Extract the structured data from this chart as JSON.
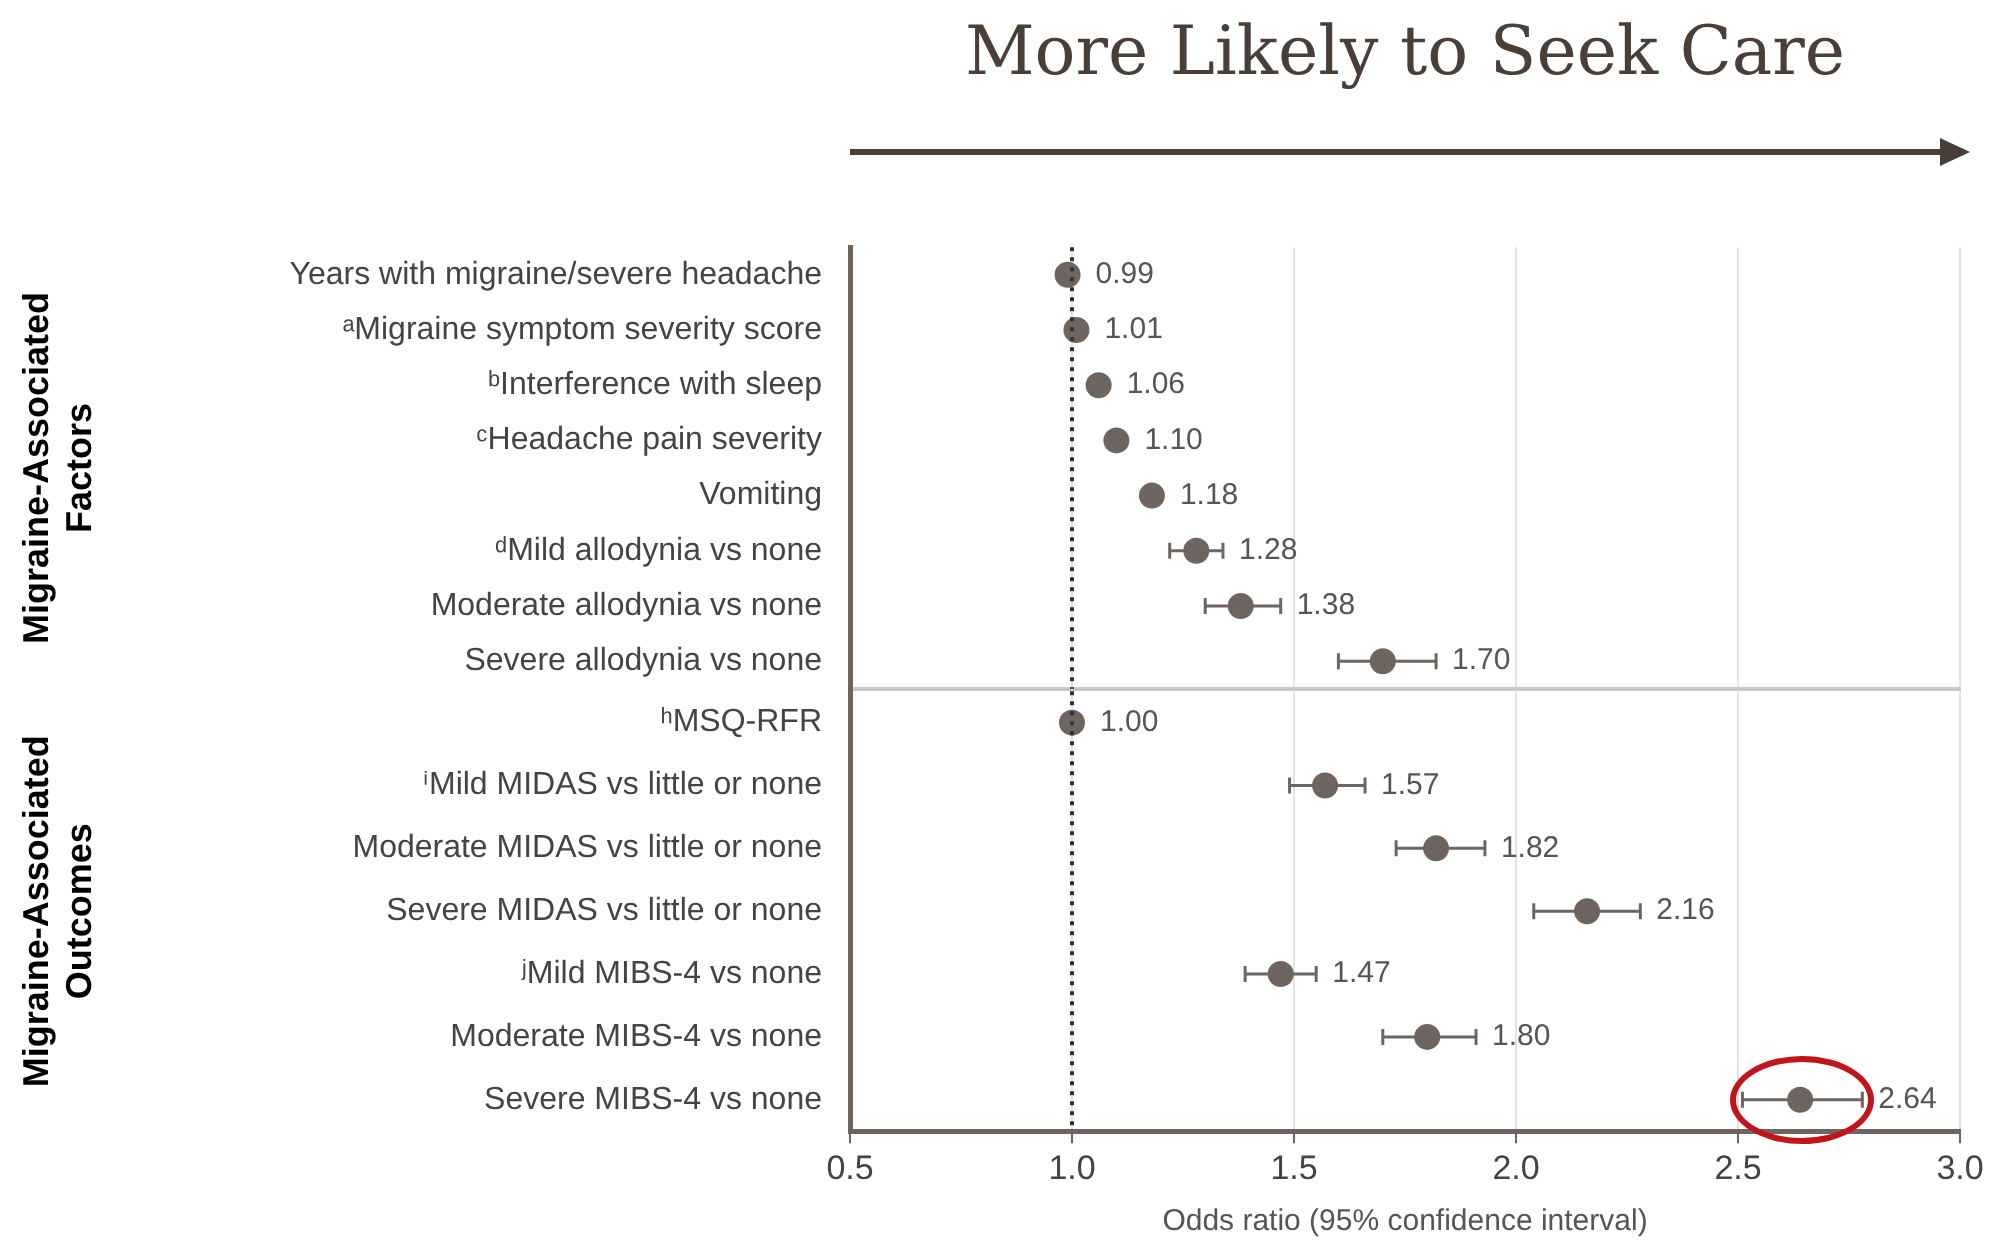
{
  "chart_data": [
    {
      "type": "scatter",
      "orientation": "horizontal",
      "title": "More Likely to Seek Care",
      "ylabel": "Migraine-Associated Factors",
      "categories": [
        "Years with migraine/severe headache",
        "ᵃMigraine symptom severity score",
        "ᵇInterference with sleep",
        "ᶜHeadache pain severity",
        "Vomiting",
        "ᵈMild allodynia vs none",
        "Moderate allodynia vs none",
        "Severe allodynia vs none"
      ],
      "values": [
        0.99,
        1.01,
        1.06,
        1.1,
        1.18,
        1.28,
        1.38,
        1.7
      ],
      "errors": [
        null,
        null,
        null,
        null,
        null,
        [
          1.22,
          1.34
        ],
        [
          1.3,
          1.47
        ],
        [
          1.6,
          1.82
        ]
      ],
      "value_labels": [
        "0.99",
        "1.01",
        "1.06",
        "1.10",
        "1.18",
        "1.28",
        "1.38",
        "1.70"
      ],
      "color": "#6e6560",
      "marker": "circle",
      "xlim": [
        0.5,
        3.0
      ],
      "xticks": [
        0.5,
        1.0,
        1.5,
        2.0,
        2.5,
        3.0
      ],
      "grid": "x",
      "tick_labels": "y",
      "ref_lines": [
        {
          "axis": "x",
          "value": 1.0,
          "line_style": "dotted",
          "color": "#333333"
        }
      ]
    },
    {
      "type": "scatter",
      "orientation": "horizontal",
      "ylabel": "Migraine-Associated Outcomes",
      "xlabel": "Odds ratio (95% confidence interval)",
      "categories": [
        "ʰMSQ-RFR",
        "ⁱMild MIDAS vs little or none",
        "Moderate MIDAS vs little or none",
        "Severe MIDAS vs little or none",
        "ʲMild MIBS-4 vs none",
        "Moderate MIBS-4 vs none",
        "Severe MIBS-4 vs none"
      ],
      "values": [
        1.0,
        1.57,
        1.82,
        2.16,
        1.47,
        1.8,
        2.64
      ],
      "errors": [
        null,
        [
          1.49,
          1.66
        ],
        [
          1.73,
          1.93
        ],
        [
          2.04,
          2.28
        ],
        [
          1.39,
          1.55
        ],
        [
          1.7,
          1.91
        ],
        [
          2.51,
          2.78
        ]
      ],
      "value_labels": [
        "1.00",
        "1.57",
        "1.82",
        "2.16",
        "1.47",
        "1.80",
        "2.64"
      ],
      "color": "#6e6560",
      "marker": "circle",
      "xlim": [
        0.5,
        3.0
      ],
      "xticks": [
        {
          "value": 0.5,
          "label": "0.5"
        },
        {
          "value": 1.0,
          "label": "1.0"
        },
        {
          "value": 1.5,
          "label": "1.5"
        },
        {
          "value": 2.0,
          "label": "2.0"
        },
        {
          "value": 2.5,
          "label": "2.5"
        },
        {
          "value": 3.0,
          "label": "3.0"
        }
      ],
      "grid": "x",
      "ref_lines": [
        {
          "axis": "x",
          "value": 1.0,
          "line_style": "dotted",
          "color": "#333333"
        }
      ]
    }
  ]
}
